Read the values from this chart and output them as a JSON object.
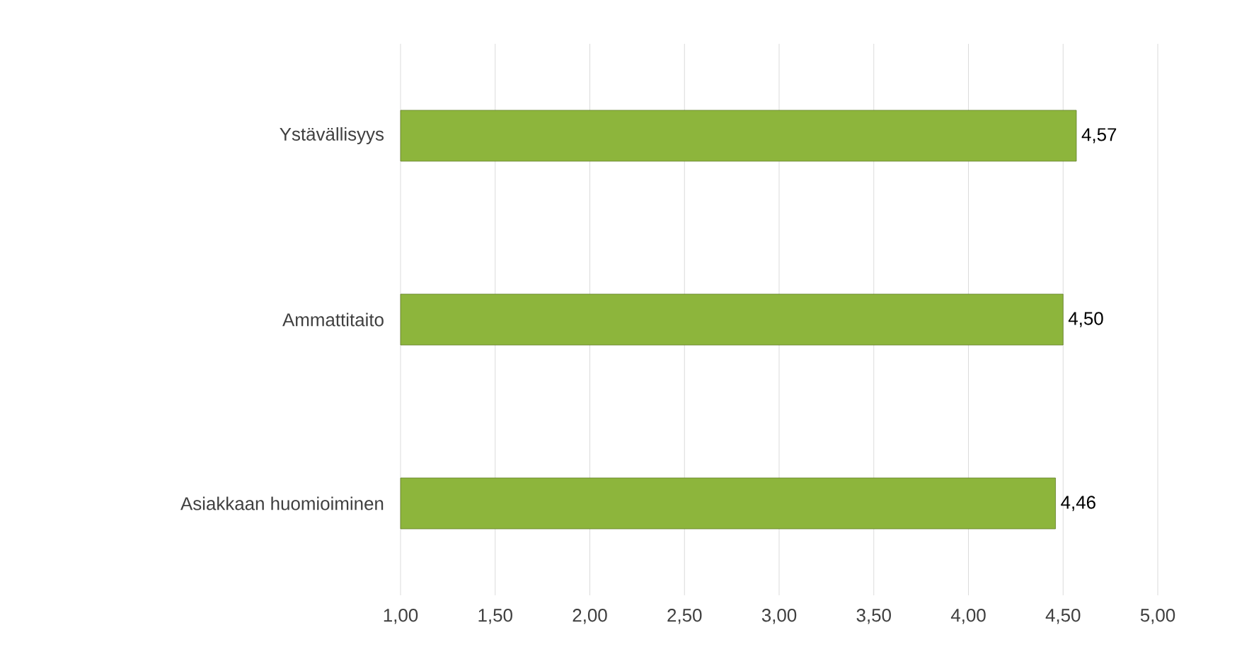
{
  "chart_data": {
    "type": "bar",
    "orientation": "horizontal",
    "categories": [
      "Ystävällisyys",
      "Ammattitaito",
      "Asiakkaan huomioiminen"
    ],
    "values": [
      4.57,
      4.5,
      4.46
    ],
    "value_labels": [
      "4,57",
      "4,50",
      "4,46"
    ],
    "color": "#8db53c",
    "xlim": [
      1,
      5
    ],
    "xticks": [
      {
        "value": 1,
        "label": "1,00"
      },
      {
        "value": 1.5,
        "label": "1,50"
      },
      {
        "value": 2,
        "label": "2,00"
      },
      {
        "value": 2.5,
        "label": "2,50"
      },
      {
        "value": 3,
        "label": "3,00"
      },
      {
        "value": 3.5,
        "label": "3,50"
      },
      {
        "value": 4,
        "label": "4,00"
      },
      {
        "value": 4.5,
        "label": "4,50"
      },
      {
        "value": 5,
        "label": "5,00"
      }
    ],
    "grid": "x"
  }
}
